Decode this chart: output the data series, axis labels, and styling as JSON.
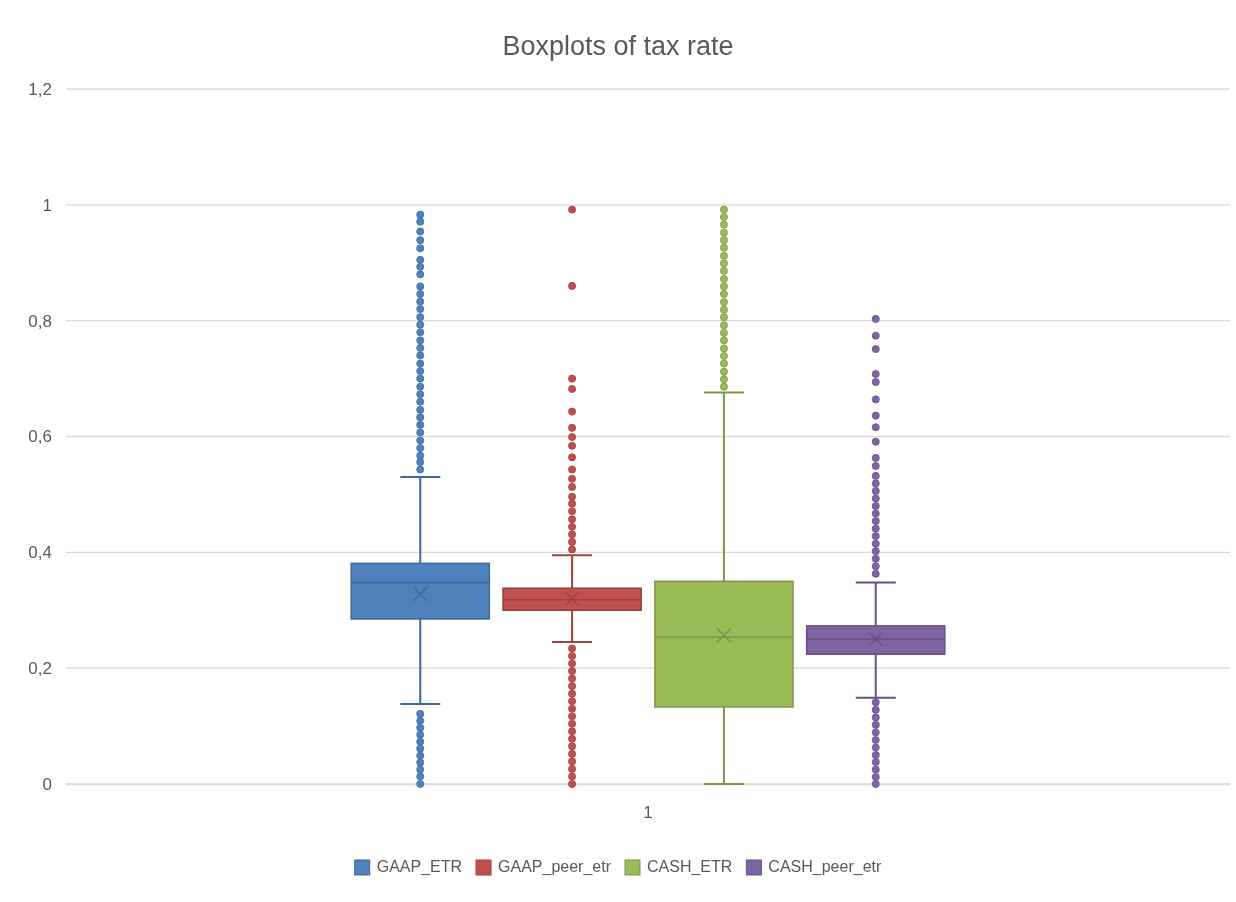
{
  "chart_data": {
    "type": "box",
    "title": "Boxplots of tax rate",
    "categories": [
      "1"
    ],
    "ylim": [
      0,
      1.2
    ],
    "yticks": [
      0,
      {
        "value": 0.2,
        "label": "0,2"
      },
      {
        "value": 0.4,
        "label": "0,4"
      },
      {
        "value": 0.6,
        "label": "0,6"
      },
      {
        "value": 0.8,
        "label": "0,8"
      },
      1,
      {
        "value": 1.2,
        "label": "1,2"
      }
    ],
    "grid": "y",
    "legend": "bottom",
    "marker": "circle",
    "series": [
      {
        "name": "GAAP_ETR",
        "color": "#4f81bd",
        "boxes": [
          {
            "low": 0.138,
            "q1": 0.285,
            "median": 0.348,
            "q3": 0.381,
            "high": 0.53,
            "mean": 0.328,
            "outliers": [
              0.983,
              0.971,
              0.954,
              0.939,
              0.925,
              0.905,
              0.893,
              0.88,
              0.859,
              0.846,
              0.833,
              0.82,
              0.806,
              0.793,
              0.78,
              0.766,
              0.753,
              0.74,
              0.726,
              0.713,
              0.7,
              0.686,
              0.673,
              0.66,
              0.646,
              0.633,
              0.62,
              0.607,
              0.593,
              0.58,
              0.567,
              0.556,
              0.543,
              0.121,
              0.109,
              0.097,
              0.085,
              0.073,
              0.061,
              0.049,
              0.037,
              0.025,
              0.013,
              0
            ]
          }
        ]
      },
      {
        "name": "GAAP_peer_etr",
        "color": "#c0504d",
        "boxes": [
          {
            "low": 0.245,
            "q1": 0.3,
            "median": 0.318,
            "q3": 0.338,
            "high": 0.395,
            "mean": 0.32,
            "outliers": [
              0.992,
              0.86,
              0.7,
              0.682,
              0.643,
              0.615,
              0.599,
              0.584,
              0.564,
              0.543,
              0.527,
              0.513,
              0.496,
              0.484,
              0.471,
              0.457,
              0.444,
              0.431,
              0.418,
              0.405,
              0.234,
              0.221,
              0.208,
              0.195,
              0.182,
              0.169,
              0.156,
              0.143,
              0.13,
              0.117,
              0.104,
              0.091,
              0.078,
              0.065,
              0.052,
              0.039,
              0.026,
              0.013,
              0
            ]
          }
        ]
      },
      {
        "name": "CASH_ETR",
        "color": "#9bbb59",
        "boxes": [
          {
            "low": 0,
            "q1": 0.133,
            "median": 0.254,
            "q3": 0.35,
            "high": 0.676,
            "mean": 0.257,
            "outliers": [
              0.992,
              0.979,
              0.966,
              0.952,
              0.939,
              0.926,
              0.912,
              0.899,
              0.886,
              0.872,
              0.859,
              0.846,
              0.832,
              0.819,
              0.806,
              0.792,
              0.779,
              0.766,
              0.752,
              0.739,
              0.726,
              0.712,
              0.699,
              0.686
            ]
          }
        ]
      },
      {
        "name": "CASH_peer_etr",
        "color": "#8064a2",
        "boxes": [
          {
            "low": 0.149,
            "q1": 0.224,
            "median": 0.25,
            "q3": 0.273,
            "high": 0.348,
            "mean": 0.25,
            "outliers": [
              0.803,
              0.774,
              0.751,
              0.708,
              0.694,
              0.664,
              0.636,
              0.616,
              0.591,
              0.563,
              0.549,
              0.532,
              0.519,
              0.506,
              0.493,
              0.48,
              0.467,
              0.454,
              0.441,
              0.428,
              0.415,
              0.402,
              0.389,
              0.376,
              0.363,
              0.141,
              0.128,
              0.115,
              0.102,
              0.089,
              0.076,
              0.063,
              0.05,
              0.038,
              0.025,
              0.012,
              0
            ]
          }
        ]
      }
    ]
  }
}
